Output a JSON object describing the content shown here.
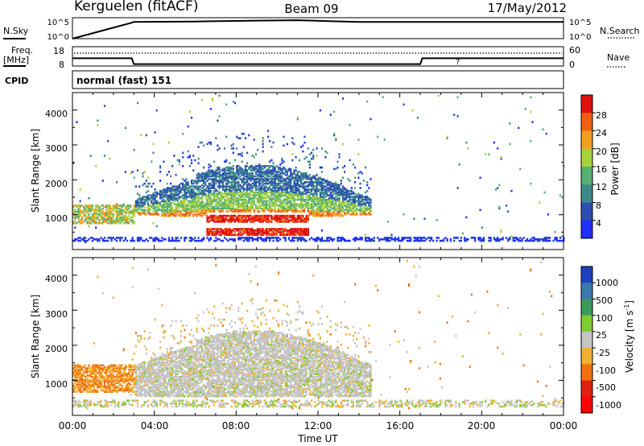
{
  "header": {
    "station": "Kerguelen (fitACF)",
    "beam": "Beam 09",
    "date": "17/May/2012"
  },
  "param_panels": {
    "nsky": {
      "left_label": "N.Sky",
      "left_ticks": [
        "10^5",
        "10^0"
      ],
      "right_ticks": [
        "10^5",
        "10^0"
      ],
      "right_label": "N.Search"
    },
    "freq": {
      "left_label": "Freq.",
      "left_unit": "[MHz]",
      "left_ticks": [
        "18",
        "8"
      ],
      "right_ticks": [
        "60",
        "0"
      ],
      "right_label": "Nave"
    },
    "cpid": {
      "label": "CPID",
      "value": "normal (fast) 151"
    }
  },
  "axes": {
    "xlabel": "Time UT",
    "x_ticks": [
      "00:00",
      "04:00",
      "08:00",
      "12:00",
      "16:00",
      "20:00",
      "00:00"
    ],
    "ylabel": "Slant Range [km]",
    "y_ticks": [
      "1000",
      "2000",
      "3000",
      "4000"
    ]
  },
  "power_scale": {
    "label": "Power [dB]",
    "ticks": [
      "4",
      "8",
      "12",
      "16",
      "20",
      "24",
      "28"
    ],
    "colors": [
      "#1f2fff",
      "#2a4fb0",
      "#3e8a8a",
      "#56b070",
      "#a8d23a",
      "#f0a020",
      "#f06010",
      "#e01010"
    ]
  },
  "velocity_scale": {
    "label": "Velocity [m s",
    "label_sup": "-1",
    "label_end": "]",
    "ticks": [
      "1000",
      "500",
      "100",
      "25",
      "-25",
      "-100",
      "-500",
      "-1000"
    ],
    "colors": [
      "#2040c0",
      "#3c78b0",
      "#3a9a5a",
      "#80cc30",
      "#c4c4c4",
      "#f0b030",
      "#f07010",
      "#e02010",
      "#ff0000"
    ]
  },
  "chart_data": [
    {
      "type": "line",
      "title": "N.Sky",
      "x": [
        0,
        2.9,
        3.0,
        6,
        9,
        11,
        12.5,
        14,
        16,
        18,
        20,
        22,
        24
      ],
      "y_log10": [
        0,
        3.8,
        4.0,
        4.1,
        4.3,
        4.4,
        4.2,
        4.0,
        4.0,
        4.0,
        4.0,
        4.0,
        4.0
      ],
      "ylim_log10": [
        0,
        5
      ]
    },
    {
      "type": "line",
      "title": "Freq.",
      "x": [
        0,
        2.9,
        3.0,
        17.0,
        17.1,
        24
      ],
      "y": [
        12,
        12,
        9,
        9,
        12,
        12
      ],
      "ylim": [
        8,
        18
      ]
    },
    {
      "type": "heatmap",
      "title": "Power [dB]",
      "xlim": [
        0,
        24
      ],
      "ylim": [
        0,
        4500
      ],
      "features": [
        {
          "name": "near-range ground scatter",
          "t": [
            0,
            24
          ],
          "range": [
            220,
            360
          ],
          "power": 8
        },
        {
          "name": "morning echoes",
          "t": [
            0,
            3
          ],
          "range": [
            700,
            1200
          ],
          "power": 14
        },
        {
          "name": "broad F-region arc",
          "t": [
            3,
            14.5
          ],
          "range": [
            900,
            2400
          ],
          "power": 12
        },
        {
          "name": "strong layered echoes",
          "t": [
            6.5,
            11.5
          ],
          "range": [
            350,
            1000
          ],
          "power": 28
        }
      ]
    },
    {
      "type": "heatmap",
      "title": "Velocity [m s-1]",
      "xlim": [
        0,
        24
      ],
      "ylim": [
        0,
        4500
      ],
      "features": [
        {
          "name": "morning flow",
          "t": [
            0,
            3
          ],
          "range": [
            600,
            1400
          ],
          "velocity": -150
        },
        {
          "name": "broad arc",
          "t": [
            3,
            14.5
          ],
          "range": [
            900,
            2400
          ],
          "velocity": 0
        },
        {
          "name": "near-range",
          "t": [
            0,
            24
          ],
          "range": [
            220,
            420
          ],
          "velocity": -50
        }
      ]
    }
  ]
}
